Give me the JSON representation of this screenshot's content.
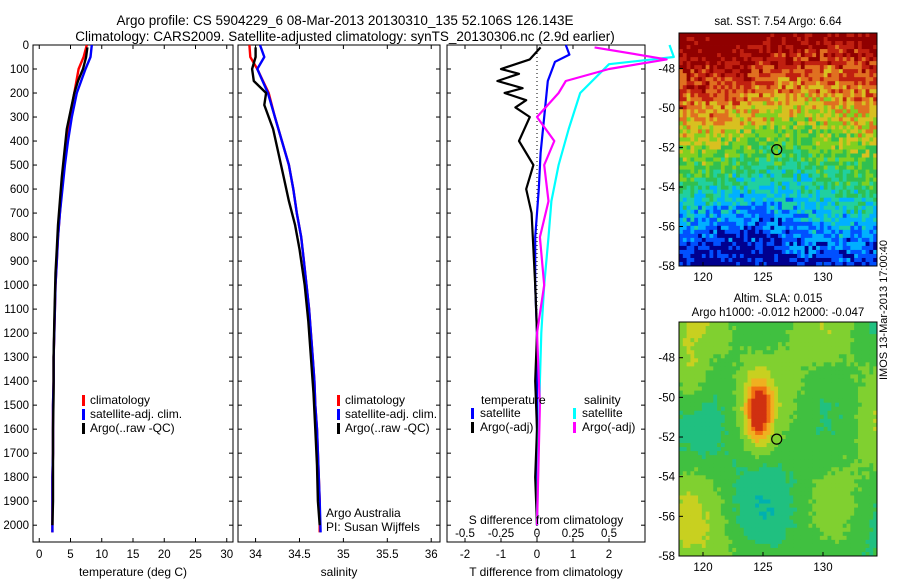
{
  "figure": {
    "title_line1": "Argo profile: CS 5904229_6 08-Mar-2013 20130310_135 52.106S 126.143E",
    "title_line2": "Climatology: CARS2009. Satellite-adjusted climatology: synTS_20130306.nc (2.9d earlier)",
    "side_label": "IMOS 13-Mar-2013 17:00:40",
    "credit_line1": "Argo Australia",
    "credit_line2": "PI: Susan Wijffels"
  },
  "chart_data": [
    {
      "id": "temperature",
      "type": "line",
      "xlabel": "temperature (deg C)",
      "ylabel": "",
      "xlim": [
        -1,
        31
      ],
      "ylim": [
        2070,
        0
      ],
      "xticks": [
        0,
        5,
        10,
        15,
        20,
        25,
        30
      ],
      "yticks": [
        0,
        100,
        200,
        300,
        400,
        500,
        600,
        700,
        800,
        900,
        1000,
        1100,
        1200,
        1300,
        1400,
        1500,
        1600,
        1700,
        1800,
        1900,
        2000
      ],
      "series": [
        {
          "name": "climatology",
          "color": "#ff0000",
          "x": [
            7.6,
            7.1,
            6.3,
            5.6,
            4.9,
            4.4,
            4.0,
            3.6,
            3.3,
            3.0,
            2.8,
            2.6,
            2.5,
            2.4,
            2.3,
            2.3,
            2.2,
            2.2,
            2.2,
            2.1,
            2.1,
            2.1
          ],
          "y": [
            0,
            50,
            100,
            200,
            300,
            400,
            500,
            600,
            700,
            800,
            900,
            1000,
            1100,
            1200,
            1300,
            1400,
            1500,
            1600,
            1700,
            1800,
            1900,
            2030
          ]
        },
        {
          "name": "satellite-adj. clim.",
          "color": "#0000ff",
          "x": [
            8.4,
            8.2,
            7.4,
            6.0,
            5.2,
            4.6,
            4.1,
            3.7,
            3.3,
            3.0,
            2.8,
            2.6,
            2.5,
            2.4,
            2.3,
            2.3,
            2.2,
            2.2,
            2.2,
            2.1,
            2.1,
            2.1
          ],
          "y": [
            0,
            50,
            100,
            200,
            300,
            400,
            500,
            600,
            700,
            800,
            900,
            1000,
            1100,
            1200,
            1300,
            1400,
            1500,
            1600,
            1700,
            1800,
            1900,
            2030
          ]
        },
        {
          "name": "Argo(..raw -QC)",
          "color": "#000000",
          "x": [
            7.7,
            7.5,
            7.0,
            6.2,
            5.6,
            5.2,
            4.4,
            4.0,
            3.6,
            3.3,
            3.0,
            2.8,
            2.6,
            2.5,
            2.4,
            2.3,
            2.3,
            2.2,
            2.2,
            2.2,
            2.1
          ],
          "y": [
            10,
            50,
            100,
            150,
            200,
            250,
            350,
            450,
            550,
            650,
            750,
            850,
            950,
            1050,
            1150,
            1300,
            1450,
            1600,
            1750,
            1900,
            2000
          ]
        }
      ],
      "legend": {
        "placement": "lower-right",
        "entries": [
          "climatology",
          "satellite-adj. clim.",
          "Argo(..raw -QC)"
        ]
      }
    },
    {
      "id": "salinity",
      "type": "line",
      "xlabel": "salinity",
      "ylabel": "",
      "xlim": [
        33.8,
        36.1
      ],
      "ylim": [
        2070,
        0
      ],
      "xticks": [
        34,
        34.5,
        35,
        35.5,
        36
      ],
      "series": [
        {
          "name": "climatology",
          "color": "#ff0000",
          "x": [
            33.93,
            33.94,
            34.02,
            34.15,
            34.22,
            34.3,
            34.38,
            34.43,
            34.47,
            34.52,
            34.55,
            34.58,
            34.61,
            34.63,
            34.65,
            34.67,
            34.68,
            34.7,
            34.71,
            34.72,
            34.73,
            34.73
          ],
          "y": [
            0,
            50,
            100,
            200,
            300,
            400,
            500,
            600,
            700,
            800,
            900,
            1000,
            1100,
            1200,
            1300,
            1400,
            1500,
            1600,
            1700,
            1800,
            1900,
            2030
          ]
        },
        {
          "name": "satellite-adj. clim.",
          "color": "#0000ff",
          "x": [
            34.05,
            34.1,
            34.02,
            34.14,
            34.22,
            34.3,
            34.38,
            34.43,
            34.47,
            34.52,
            34.55,
            34.58,
            34.61,
            34.63,
            34.65,
            34.67,
            34.68,
            34.7,
            34.71,
            34.72,
            34.73,
            34.74
          ],
          "y": [
            0,
            50,
            100,
            200,
            300,
            400,
            500,
            600,
            700,
            800,
            900,
            1000,
            1100,
            1200,
            1300,
            1400,
            1500,
            1600,
            1700,
            1800,
            1900,
            2030
          ]
        },
        {
          "name": "Argo(..raw -QC)",
          "color": "#000000",
          "x": [
            34.0,
            34.0,
            33.96,
            33.98,
            34.12,
            34.1,
            34.2,
            34.26,
            34.32,
            34.38,
            34.45,
            34.5,
            34.56,
            34.6,
            34.63,
            34.66,
            34.68,
            34.7,
            34.71,
            34.73
          ],
          "y": [
            10,
            50,
            100,
            150,
            200,
            250,
            350,
            450,
            550,
            650,
            750,
            850,
            1000,
            1150,
            1300,
            1450,
            1600,
            1750,
            1900,
            2000
          ]
        }
      ],
      "legend": {
        "placement": "lower-right",
        "entries": [
          "climatology",
          "satellite-adj. clim.",
          "Argo(..raw -QC)"
        ]
      }
    },
    {
      "id": "differences",
      "type": "line",
      "xlabel": "T difference from climatology",
      "xlabel_top": "S difference from climatology",
      "xlim": [
        -2.5,
        3.0
      ],
      "ylim": [
        2070,
        0
      ],
      "xticks": [
        -2,
        -1,
        0,
        1,
        2
      ],
      "xticks_top": [
        -0.5,
        -0.25,
        0,
        0.25,
        0.5
      ],
      "xticks_top_labels": [
        "-0.5",
        "-0.25",
        "0",
        "0.25",
        "0.5"
      ],
      "legend_headers": [
        "temperature",
        "salinity"
      ],
      "series": [
        {
          "name": "satellite",
          "group": "temperature",
          "color": "#0000ff",
          "x": [
            0.8,
            0.9,
            0.5,
            0.3,
            0.2,
            0.1,
            0.05,
            0.0,
            -0.05,
            -0.05,
            -0.05,
            0.0,
            0.0,
            0.0,
            0.0,
            0.0
          ],
          "y": [
            0,
            40,
            70,
            150,
            300,
            450,
            600,
            700,
            800,
            900,
            1000,
            1200,
            1400,
            1600,
            1800,
            2000
          ]
        },
        {
          "name": "Argo(-adj)",
          "group": "temperature",
          "color": "#000000",
          "x": [
            0.1,
            -0.2,
            -1.0,
            -0.5,
            -1.1,
            -0.4,
            -0.9,
            -0.3,
            -0.6,
            -0.2,
            -0.5,
            -0.1,
            -0.3,
            -0.15,
            -0.1,
            -0.05,
            0.0,
            -0.05,
            0.0,
            -0.05,
            0.0
          ],
          "y": [
            10,
            60,
            100,
            120,
            150,
            180,
            200,
            230,
            260,
            300,
            400,
            500,
            600,
            700,
            850,
            1000,
            1200,
            1400,
            1600,
            1800,
            2000
          ]
        },
        {
          "name": "satellite",
          "group": "salinity",
          "color": "#00ffff",
          "x": [
            0.92,
            0.95,
            0.5,
            0.3,
            0.22,
            0.15,
            0.1,
            0.08,
            0.05,
            0.03,
            0.02,
            0.01,
            0.0
          ],
          "y": [
            0,
            50,
            80,
            200,
            350,
            500,
            650,
            800,
            1000,
            1200,
            1400,
            1700,
            2000
          ]
        },
        {
          "name": "Argo(-adj)",
          "group": "salinity",
          "color": "#ff00ff",
          "x": [
            0.4,
            0.9,
            0.5,
            0.2,
            0.15,
            0.0,
            0.12,
            0.05,
            0.08,
            0.02,
            0.05,
            0.0,
            0.02,
            0.0
          ],
          "y": [
            10,
            60,
            100,
            150,
            200,
            300,
            400,
            500,
            650,
            800,
            1000,
            1200,
            1500,
            2000
          ]
        }
      ],
      "legend": {
        "placement": "lower-center",
        "entries": [
          "satellite",
          "Argo(-adj)",
          "satellite",
          "Argo(-adj)"
        ]
      }
    },
    {
      "id": "sst_map",
      "type": "heatmap",
      "title": "sat. SST: 7.54 Argo: 6.64",
      "xlim": [
        118,
        134.5
      ],
      "ylim": [
        -58,
        -46.2
      ],
      "xticks": [
        120,
        125,
        130
      ],
      "yticks": [
        -48,
        -50,
        -52,
        -54,
        -56,
        -58
      ],
      "marker": {
        "lon": 126.143,
        "lat": -52.106
      },
      "colors": [
        "#00008f",
        "#0050ff",
        "#00b0ff",
        "#20d0a0",
        "#30c050",
        "#80d020",
        "#d8c020",
        "#e07020",
        "#c02010",
        "#900000"
      ]
    },
    {
      "id": "sla_map",
      "type": "heatmap",
      "title_line1": "Altim. SLA: 0.015",
      "title_line2": "Argo h1000: -0.012 h2000: -0.047",
      "xlim": [
        118,
        134.5
      ],
      "ylim": [
        -58,
        -46.2
      ],
      "xticks": [
        120,
        125,
        130
      ],
      "yticks": [
        -48,
        -50,
        -52,
        -54,
        -56,
        -58
      ],
      "marker": {
        "lon": 126.143,
        "lat": -52.106
      },
      "colors": [
        "#00b0b0",
        "#20c080",
        "#40c040",
        "#80d030",
        "#c8d020",
        "#f0b020",
        "#f07010",
        "#d03010"
      ]
    }
  ]
}
